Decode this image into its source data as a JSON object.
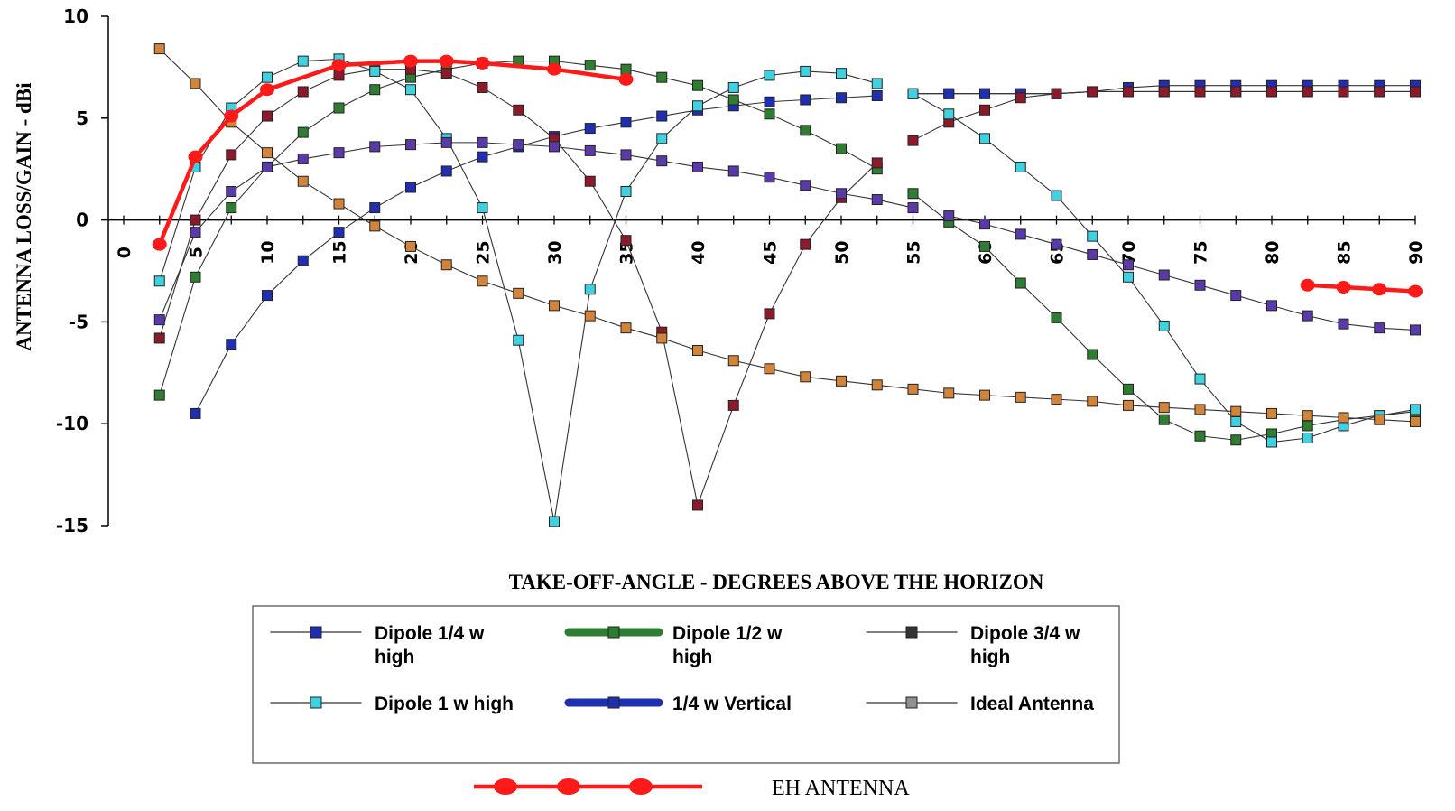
{
  "chart_data": {
    "type": "line",
    "title": "",
    "xlabel": "TAKE-OFF-ANGLE - DEGREES ABOVE THE HORIZON",
    "ylabel": "ANTENNA LOSS/GAIN - dBi",
    "xlim": [
      0,
      90
    ],
    "ylim": [
      -15,
      10
    ],
    "x_ticks": [
      "0",
      "5",
      "10",
      "15",
      "20",
      "25",
      "30",
      "35",
      "40",
      "45",
      "50",
      "55",
      "60",
      "65",
      "70",
      "75",
      "80",
      "85",
      "90"
    ],
    "y_ticks": [
      "10",
      "5",
      "0",
      "-5",
      "-10",
      "-15"
    ],
    "grid": false,
    "legend_position": "bottom",
    "series": [
      {
        "name": "Dipole 1/4 w high",
        "color": "#1f2fb0",
        "x": [
          5,
          7.5,
          10,
          12.5,
          15,
          17.5,
          20,
          22.5,
          25,
          27.5,
          30,
          32.5,
          35,
          37.5,
          40,
          42.5,
          45,
          47.5,
          50,
          52.5
        ],
        "y": [
          -9.5,
          -6.1,
          -3.7,
          -2,
          -0.6,
          0.6,
          1.6,
          2.4,
          3.1,
          3.6,
          4.1,
          4.5,
          4.8,
          5.1,
          5.4,
          5.6,
          5.8,
          5.9,
          6,
          6.1
        ]
      },
      {
        "name": "Dipole 1/2 w high",
        "color": "#2e7d32",
        "x": [
          2.5,
          5,
          7.5,
          10,
          12.5,
          15,
          17.5,
          20,
          22.5,
          25,
          27.5,
          30,
          32.5,
          35,
          37.5,
          40,
          42.5,
          45,
          47.5,
          50,
          52.5
        ],
        "y": [
          -8.6,
          -2.8,
          0.6,
          2.6,
          4.3,
          5.5,
          6.4,
          7,
          7.4,
          7.7,
          7.8,
          7.8,
          7.6,
          7.4,
          7,
          6.6,
          5.9,
          5.2,
          4.4,
          3.5,
          2.5
        ]
      },
      {
        "name": "Dipole 3/4 w high",
        "color": "#8b1a2a",
        "x": [
          2.5,
          5,
          7.5,
          10,
          12.5,
          15,
          17.5,
          20,
          22.5,
          25,
          27.5,
          30,
          32.5,
          35,
          37.5,
          40,
          42.5,
          45,
          47.5,
          50,
          52.5
        ],
        "y": [
          -5.8,
          0,
          3.2,
          5.1,
          6.3,
          7.1,
          7.4,
          7.4,
          7.2,
          6.5,
          5.4,
          4,
          1.9,
          -1,
          -5.5,
          -14,
          -9.1,
          -4.6,
          -1.2,
          1.1,
          2.8
        ]
      },
      {
        "name": "Dipole 1 w high",
        "color": "#40d0e0",
        "x": [
          2.5,
          5,
          7.5,
          10,
          12.5,
          15,
          17.5,
          20,
          22.5,
          25,
          27.5,
          30,
          32.5,
          35,
          37.5,
          40,
          42.5,
          45,
          47.5,
          50,
          52.5
        ],
        "y": [
          -3,
          2.6,
          5.5,
          7,
          7.8,
          7.9,
          7.3,
          6.4,
          4,
          0.6,
          -5.9,
          -14.8,
          -3.4,
          1.4,
          4,
          5.6,
          6.5,
          7.1,
          7.3,
          7.2,
          6.7
        ]
      },
      {
        "name": "1/4 w Vertical",
        "color": "#5a3aa8",
        "x": [
          2.5,
          5,
          7.5,
          10,
          12.5,
          15,
          17.5,
          20,
          22.5,
          25,
          27.5,
          30,
          32.5,
          35,
          37.5,
          40,
          42.5,
          45,
          47.5,
          50,
          52.5,
          55
        ],
        "y": [
          -4.9,
          -0.6,
          1.4,
          2.6,
          3,
          3.3,
          3.6,
          3.7,
          3.8,
          3.8,
          3.7,
          3.6,
          3.4,
          3.2,
          2.9,
          2.6,
          2.4,
          2.1,
          1.7,
          1.3,
          1,
          0.6
        ]
      },
      {
        "name": "Ideal Antenna",
        "color": "#8f8f8f",
        "x": [
          55,
          57.5,
          60,
          62.5,
          65,
          67.5,
          70,
          72.5,
          75,
          77.5,
          80,
          82.5,
          85,
          87.5,
          90
        ],
        "y": [
          6.2,
          6.2,
          6.2,
          6.2,
          6.2,
          6.3,
          6.3,
          6.3,
          6.3,
          6.3,
          6.3,
          6.3,
          6.3,
          6.3,
          6.3
        ]
      },
      {
        "name": "Dipole 1/4 w high (continued)",
        "color": "#1f2fb0",
        "x": [
          55,
          57.5,
          60,
          62.5,
          65,
          67.5,
          70,
          72.5,
          75,
          77.5,
          80,
          82.5,
          85,
          87.5,
          90
        ],
        "y": [
          6.2,
          6.2,
          6.2,
          6.2,
          6.2,
          6.3,
          6.5,
          6.6,
          6.6,
          6.6,
          6.6,
          6.6,
          6.6,
          6.6,
          6.6
        ]
      },
      {
        "name": "Dipole 1/2 w high (continued)",
        "color": "#2e7d32",
        "x": [
          55,
          57.5,
          60,
          62.5,
          65,
          67.5,
          70,
          72.5,
          75,
          77.5,
          80,
          82.5,
          85,
          87.5,
          90
        ],
        "y": [
          1.3,
          -0.1,
          -1.3,
          -3.1,
          -4.8,
          -6.6,
          -8.3,
          -9.8,
          -10.6,
          -10.8,
          -10.5,
          -10.1,
          -9.8,
          -9.6,
          -9.4
        ]
      },
      {
        "name": "Dipole 3/4 w high (continued)",
        "color": "#8b1a2a",
        "x": [
          55,
          57.5,
          60,
          62.5,
          65,
          67.5,
          70,
          72.5,
          75,
          77.5,
          80,
          82.5,
          85,
          87.5,
          90
        ],
        "y": [
          3.9,
          4.8,
          5.4,
          6,
          6.2,
          6.3,
          6.3,
          6.3,
          6.3,
          6.3,
          6.3,
          6.3,
          6.3,
          6.3,
          6.3
        ]
      },
      {
        "name": "Dipole 1 w high (continued)",
        "color": "#40d0e0",
        "x": [
          55,
          57.5,
          60,
          62.5,
          65,
          67.5,
          70,
          72.5,
          75,
          77.5,
          80,
          82.5,
          85,
          87.5,
          90
        ],
        "y": [
          6.2,
          5.2,
          4,
          2.6,
          1.2,
          -0.8,
          -2.8,
          -5.2,
          -7.8,
          -9.9,
          -10.9,
          -10.7,
          -10.1,
          -9.6,
          -9.3
        ]
      },
      {
        "name": "1/4 w Vertical (continued)",
        "color": "#5a3aa8",
        "x": [
          57.5,
          60,
          62.5,
          65,
          67.5,
          70,
          72.5,
          75,
          77.5,
          80,
          82.5,
          85,
          87.5,
          90
        ],
        "y": [
          0.2,
          -0.2,
          -0.7,
          -1.2,
          -1.7,
          -2.2,
          -2.7,
          -3.2,
          -3.7,
          -4.2,
          -4.7,
          -5.1,
          -5.3,
          -5.4
        ]
      },
      {
        "name": "Orange series",
        "color": "#d2843a",
        "x": [
          2.5,
          5,
          7.5,
          10,
          12.5,
          15,
          17.5,
          20,
          22.5,
          25,
          27.5,
          30,
          32.5,
          35,
          37.5,
          40,
          42.5,
          45,
          47.5,
          50,
          52.5,
          55,
          57.5,
          60,
          62.5,
          65,
          67.5,
          70,
          72.5,
          75,
          77.5,
          80,
          82.5,
          85,
          87.5,
          90
        ],
        "y": [
          8.4,
          6.7,
          4.8,
          3.3,
          1.9,
          0.8,
          -0.3,
          -1.3,
          -2.2,
          -3,
          -3.6,
          -4.2,
          -4.7,
          -5.3,
          -5.8,
          -6.4,
          -6.9,
          -7.3,
          -7.7,
          -7.9,
          -8.1,
          -8.3,
          -8.5,
          -8.6,
          -8.7,
          -8.8,
          -8.9,
          -9.1,
          -9.2,
          -9.3,
          -9.4,
          -9.5,
          -9.6,
          -9.7,
          -9.8,
          -9.9
        ]
      },
      {
        "name": "EH ANTENNA",
        "color": "#ff1a1a",
        "x": [
          2.5,
          5,
          7.5,
          10,
          15,
          20,
          22.5,
          25,
          30,
          35
        ],
        "y": [
          -1.2,
          3.1,
          5.1,
          6.4,
          7.6,
          7.8,
          7.8,
          7.7,
          7.4,
          6.9
        ]
      },
      {
        "name": "EH ANTENNA (segment)",
        "color": "#ff1a1a",
        "x": [
          82.5,
          85,
          87.5,
          90
        ],
        "y": [
          -3.2,
          -3.3,
          -3.4,
          -3.5
        ]
      }
    ],
    "legend": [
      {
        "label": "Dipole 1/4 w\nhigh",
        "color": "#1f2fb0",
        "style": "thin"
      },
      {
        "label": "Dipole 1/2 w\nhigh",
        "color": "#2e7d32",
        "style": "thick"
      },
      {
        "label": "Dipole 3/4 w\nhigh",
        "color": "#333333",
        "style": "thin"
      },
      {
        "label": "Dipole 1 w high",
        "color": "#40d0e0",
        "style": "thin"
      },
      {
        "label": "1/4 w Vertical",
        "color": "#1f2fb0",
        "style": "thick"
      },
      {
        "label": "Ideal Antenna",
        "color": "#8f8f8f",
        "style": "thin"
      }
    ],
    "eh_legend_label": "EH ANTENNA"
  }
}
